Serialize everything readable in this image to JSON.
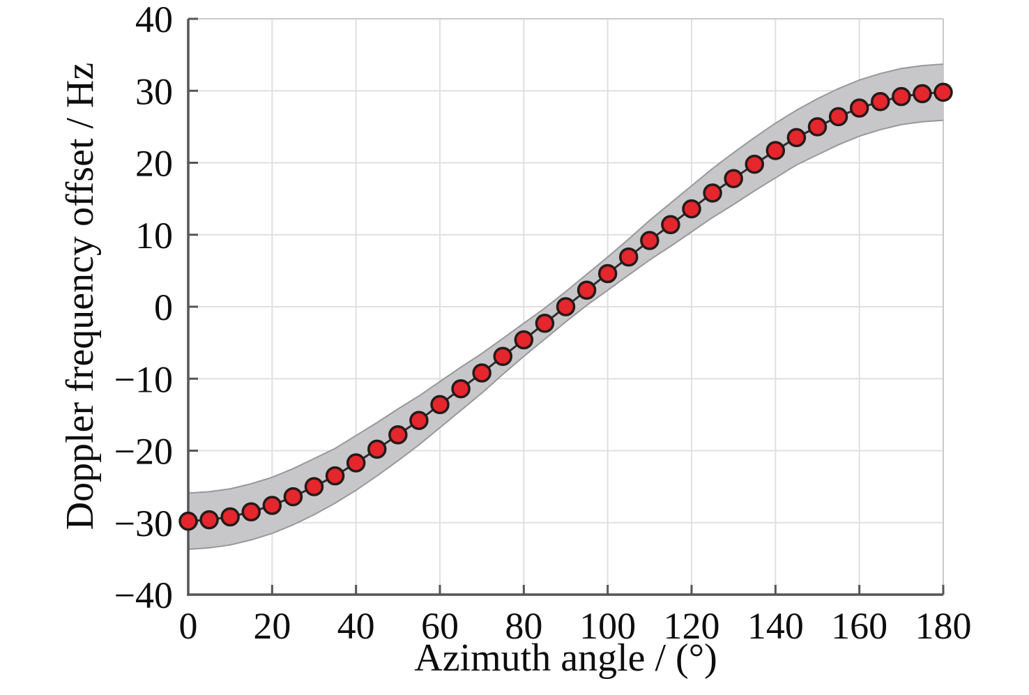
{
  "figure": {
    "background": "#ffffff"
  },
  "chart_data": {
    "type": "line",
    "xlabel": "Azimuth angle / (°)",
    "ylabel": "Doppler frequency offset / Hz",
    "xlim": [
      0,
      180
    ],
    "ylim": [
      -40,
      40
    ],
    "xticks": [
      0,
      20,
      40,
      60,
      80,
      100,
      120,
      140,
      160,
      180
    ],
    "yticks": [
      -40,
      -30,
      -20,
      -10,
      0,
      10,
      20,
      30,
      40
    ],
    "grid": true,
    "legend_position": "none",
    "x": [
      0,
      5,
      10,
      15,
      20,
      25,
      30,
      35,
      40,
      45,
      50,
      55,
      60,
      65,
      70,
      75,
      80,
      85,
      90,
      95,
      100,
      105,
      110,
      115,
      120,
      125,
      130,
      135,
      140,
      145,
      150,
      155,
      160,
      165,
      170,
      175,
      180
    ],
    "series": [
      {
        "name": "doppler-frequency-offset",
        "marker": "filled-circle",
        "values": [
          -29.8,
          -29.6,
          -29.2,
          -28.5,
          -27.6,
          -26.4,
          -25.0,
          -23.5,
          -21.7,
          -19.8,
          -17.8,
          -15.8,
          -13.6,
          -11.4,
          -9.2,
          -6.9,
          -4.6,
          -2.3,
          0.0,
          2.3,
          4.6,
          6.9,
          9.2,
          11.4,
          13.6,
          15.8,
          17.8,
          19.8,
          21.7,
          23.5,
          25.0,
          26.4,
          27.6,
          28.5,
          29.2,
          29.6,
          29.8
        ]
      }
    ],
    "band": {
      "name": "uncertainty-band",
      "upper": [
        -25.9,
        -25.7,
        -25.3,
        -24.6,
        -23.7,
        -22.5,
        -21.1,
        -19.7,
        -17.9,
        -16.1,
        -14.2,
        -12.4,
        -10.4,
        -8.4,
        -6.5,
        -4.4,
        -2.3,
        -0.2,
        2.1,
        4.5,
        6.9,
        9.4,
        12.0,
        14.4,
        16.8,
        19.2,
        21.4,
        23.5,
        25.5,
        27.3,
        28.9,
        30.3,
        31.5,
        32.4,
        33.1,
        33.5,
        33.7
      ],
      "lower": [
        -33.7,
        -33.5,
        -33.1,
        -32.4,
        -31.5,
        -30.3,
        -28.9,
        -27.3,
        -25.5,
        -23.5,
        -21.4,
        -19.2,
        -16.8,
        -14.4,
        -12.0,
        -9.4,
        -6.9,
        -4.5,
        -2.1,
        0.2,
        2.3,
        4.4,
        6.5,
        8.4,
        10.4,
        12.4,
        14.2,
        16.1,
        17.9,
        19.7,
        21.1,
        22.5,
        23.7,
        24.6,
        25.3,
        25.7,
        25.9
      ]
    }
  },
  "style": {
    "marker_fill": "#e5262c",
    "marker_edge": "#261a1a",
    "line_color": "#2e2b2b",
    "band_fill": "#c7c7c9",
    "band_edge": "#98989a",
    "grid_color": "#e0e0e0",
    "box_color": "#c9c9c9",
    "axis_color": "#555558",
    "tick_label_color": "#0d0d0d"
  }
}
